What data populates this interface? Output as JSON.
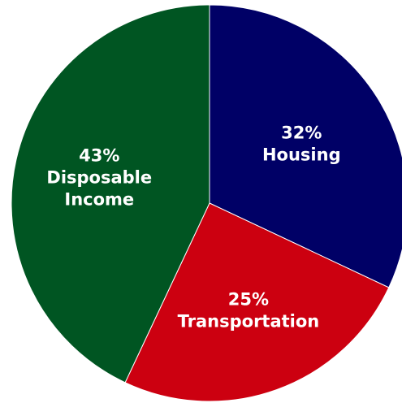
{
  "chart_data": {
    "type": "pie",
    "slices": [
      {
        "label": "Housing",
        "value": 32,
        "value_label": "32%",
        "color": "#000066"
      },
      {
        "label": "Transportation",
        "value": 25,
        "value_label": "25%",
        "color": "#cc0010"
      },
      {
        "label": "Disposable Income",
        "value": 43,
        "value_label": "43%",
        "color": "#005522"
      }
    ],
    "start": "12 o'clock",
    "direction": "clockwise",
    "legend": "none",
    "labels": "inside slices"
  }
}
